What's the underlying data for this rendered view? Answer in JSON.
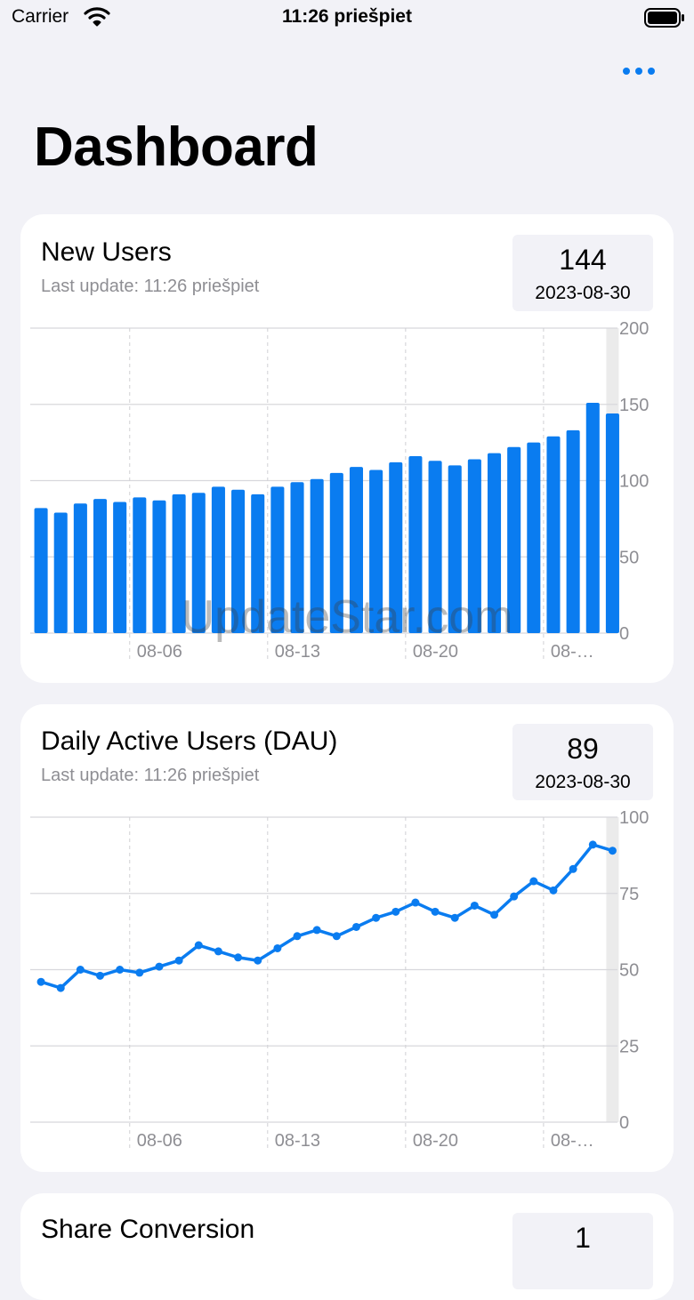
{
  "status_bar": {
    "carrier": "Carrier",
    "time": "11:26 priešpiet"
  },
  "nav": {
    "title": "Dashboard"
  },
  "watermark": "UpdateStar.com",
  "cards": [
    {
      "title": "New Users",
      "subtitle": "Last update: 11:26 priešpiet",
      "stat_value": "144",
      "stat_date": "2023-08-30"
    },
    {
      "title": "Daily Active Users (DAU)",
      "subtitle": "Last update: 11:26 priešpiet",
      "stat_value": "89",
      "stat_date": "2023-08-30"
    },
    {
      "title": "Share Conversion",
      "stat_value": "1"
    }
  ],
  "chart_data": [
    {
      "type": "bar",
      "x": [
        "08-01",
        "08-02",
        "08-03",
        "08-04",
        "08-05",
        "08-06",
        "08-07",
        "08-08",
        "08-09",
        "08-10",
        "08-11",
        "08-12",
        "08-13",
        "08-14",
        "08-15",
        "08-16",
        "08-17",
        "08-18",
        "08-19",
        "08-20",
        "08-21",
        "08-22",
        "08-23",
        "08-24",
        "08-25",
        "08-26",
        "08-27",
        "08-28",
        "08-29",
        "08-30"
      ],
      "values": [
        82,
        79,
        85,
        88,
        86,
        89,
        87,
        91,
        92,
        96,
        94,
        91,
        96,
        99,
        101,
        105,
        109,
        107,
        112,
        116,
        113,
        110,
        114,
        118,
        122,
        125,
        129,
        133,
        151,
        144
      ],
      "x_tick_labels": [
        "08-06",
        "08-13",
        "08-20",
        "08-…"
      ],
      "y_ticks": [
        0,
        50,
        100,
        150,
        200
      ],
      "ylim": [
        0,
        200
      ],
      "color": "#0a7cf0",
      "grid": true
    },
    {
      "type": "line",
      "x": [
        "08-01",
        "08-02",
        "08-03",
        "08-04",
        "08-05",
        "08-06",
        "08-07",
        "08-08",
        "08-09",
        "08-10",
        "08-11",
        "08-12",
        "08-13",
        "08-14",
        "08-15",
        "08-16",
        "08-17",
        "08-18",
        "08-19",
        "08-20",
        "08-21",
        "08-22",
        "08-23",
        "08-24",
        "08-25",
        "08-26",
        "08-27",
        "08-28",
        "08-29",
        "08-30"
      ],
      "values": [
        46,
        44,
        50,
        48,
        50,
        49,
        51,
        53,
        58,
        56,
        54,
        53,
        57,
        61,
        63,
        61,
        64,
        67,
        69,
        72,
        69,
        67,
        71,
        68,
        74,
        79,
        76,
        83,
        91,
        89
      ],
      "x_tick_labels": [
        "08-06",
        "08-13",
        "08-20",
        "08-…"
      ],
      "y_ticks": [
        0,
        25,
        50,
        75,
        100
      ],
      "ylim": [
        0,
        100
      ],
      "color": "#0a7cf0",
      "grid": true
    }
  ]
}
